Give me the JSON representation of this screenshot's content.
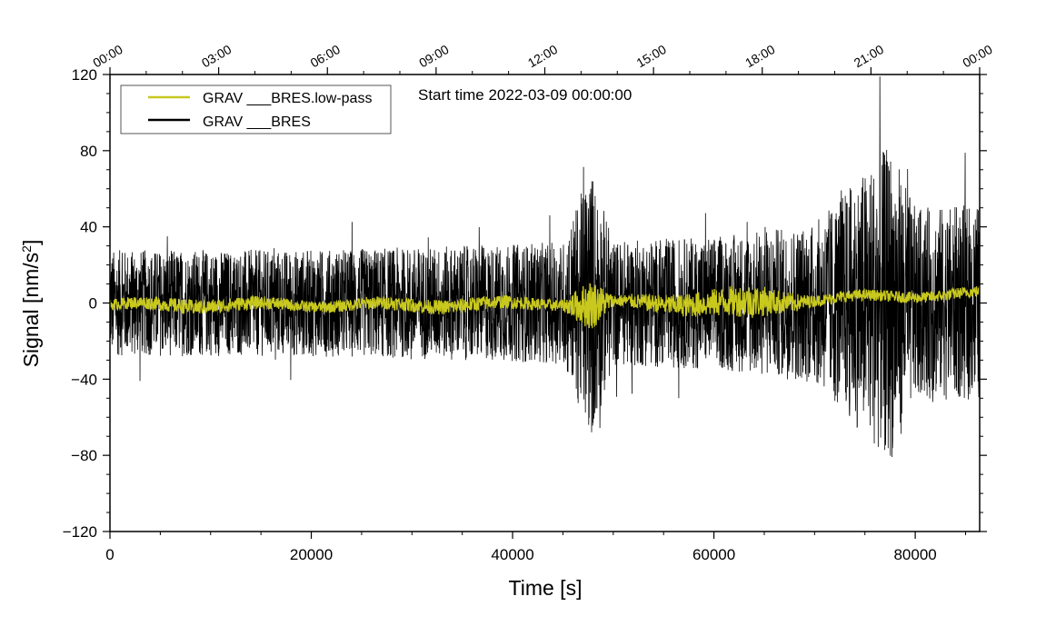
{
  "chart_data": {
    "type": "line",
    "title": "",
    "annotation": "Start time 2022-03-09 00:00:00",
    "xlabel": "Time [s]",
    "ylabel_prefix": "Signal [nm/s",
    "ylabel_sup": "2",
    "ylabel_suffix": "]",
    "xlim": [
      0,
      86400
    ],
    "ylim": [
      -120,
      120
    ],
    "x_ticks": [
      0,
      20000,
      40000,
      60000,
      80000
    ],
    "x_tick_labels": [
      "0",
      "20000",
      "40000",
      "60000",
      "80000"
    ],
    "y_ticks": [
      -120,
      -80,
      -40,
      0,
      40,
      80,
      120
    ],
    "y_tick_labels": [
      "−120",
      "−80",
      "−40",
      "0",
      "40",
      "80",
      "120"
    ],
    "top_axis_ticks_seconds": [
      0,
      10800,
      21600,
      32400,
      43200,
      54000,
      64800,
      75600,
      86400
    ],
    "top_axis_labels": [
      "00:00",
      "03:00",
      "06:00",
      "09:00",
      "12:00",
      "15:00",
      "18:00",
      "21:00",
      "00:00"
    ],
    "legend_position": "top-left",
    "series": [
      {
        "name": "GRAV ___BRES.low-pass",
        "color": "#c8c81e",
        "envelope_points": [
          {
            "x": 0,
            "baseline": -1,
            "amplitude": 3
          },
          {
            "x": 8000,
            "baseline": -1,
            "amplitude": 4
          },
          {
            "x": 20000,
            "baseline": -1,
            "amplitude": 3
          },
          {
            "x": 35000,
            "baseline": -1,
            "amplitude": 4
          },
          {
            "x": 45000,
            "baseline": 0,
            "amplitude": 3
          },
          {
            "x": 47800,
            "baseline": -1,
            "amplitude": 14
          },
          {
            "x": 50000,
            "baseline": 0,
            "amplitude": 3
          },
          {
            "x": 63800,
            "baseline": 0,
            "amplitude": 9
          },
          {
            "x": 70000,
            "baseline": 2,
            "amplitude": 3
          },
          {
            "x": 80000,
            "baseline": 4,
            "amplitude": 3
          },
          {
            "x": 86400,
            "baseline": 5,
            "amplitude": 3
          }
        ]
      },
      {
        "name": "GRAV ___BRES",
        "color": "#000000",
        "envelope_points": [
          {
            "x": 0,
            "amplitude": 28
          },
          {
            "x": 20000,
            "amplitude": 28
          },
          {
            "x": 35000,
            "amplitude": 30
          },
          {
            "x": 45000,
            "amplitude": 32
          },
          {
            "x": 47800,
            "amplitude": 72
          },
          {
            "x": 50000,
            "amplitude": 33
          },
          {
            "x": 60000,
            "amplitude": 35
          },
          {
            "x": 70000,
            "amplitude": 42
          },
          {
            "x": 77500,
            "amplitude": 84
          },
          {
            "x": 80000,
            "amplitude": 50
          },
          {
            "x": 86400,
            "amplitude": 52
          }
        ]
      }
    ]
  }
}
